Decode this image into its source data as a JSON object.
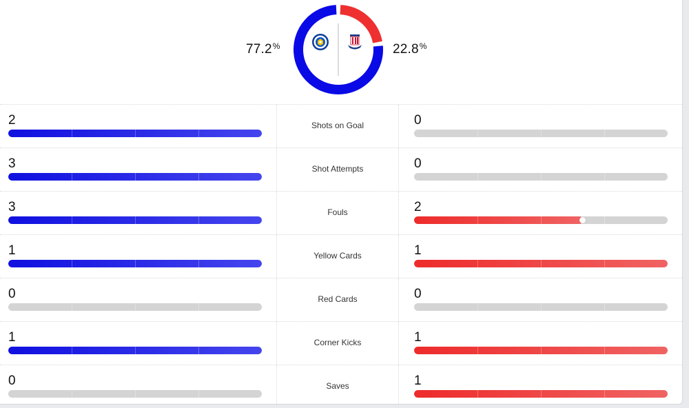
{
  "colors": {
    "home": "#0a0ae6",
    "away": "#ee3030",
    "empty": "#d4d4d4"
  },
  "possession": {
    "home_value": "77.2",
    "away_value": "22.8",
    "unit": "%",
    "home_fraction": 0.772,
    "away_fraction": 0.228,
    "home_logo": "leicester-crest-icon",
    "away_logo": "stoke-crest-icon"
  },
  "stats": [
    {
      "label": "Shots on Goal",
      "home": "2",
      "away": "0",
      "home_fill": 1.0,
      "away_fill": 0.0
    },
    {
      "label": "Shot Attempts",
      "home": "3",
      "away": "0",
      "home_fill": 1.0,
      "away_fill": 0.0
    },
    {
      "label": "Fouls",
      "home": "3",
      "away": "2",
      "home_fill": 1.0,
      "away_fill": 0.667
    },
    {
      "label": "Yellow Cards",
      "home": "1",
      "away": "1",
      "home_fill": 1.0,
      "away_fill": 1.0
    },
    {
      "label": "Red Cards",
      "home": "0",
      "away": "0",
      "home_fill": 0.0,
      "away_fill": 0.0
    },
    {
      "label": "Corner Kicks",
      "home": "1",
      "away": "1",
      "home_fill": 1.0,
      "away_fill": 1.0
    },
    {
      "label": "Saves",
      "home": "0",
      "away": "1",
      "home_fill": 0.0,
      "away_fill": 1.0
    }
  ]
}
